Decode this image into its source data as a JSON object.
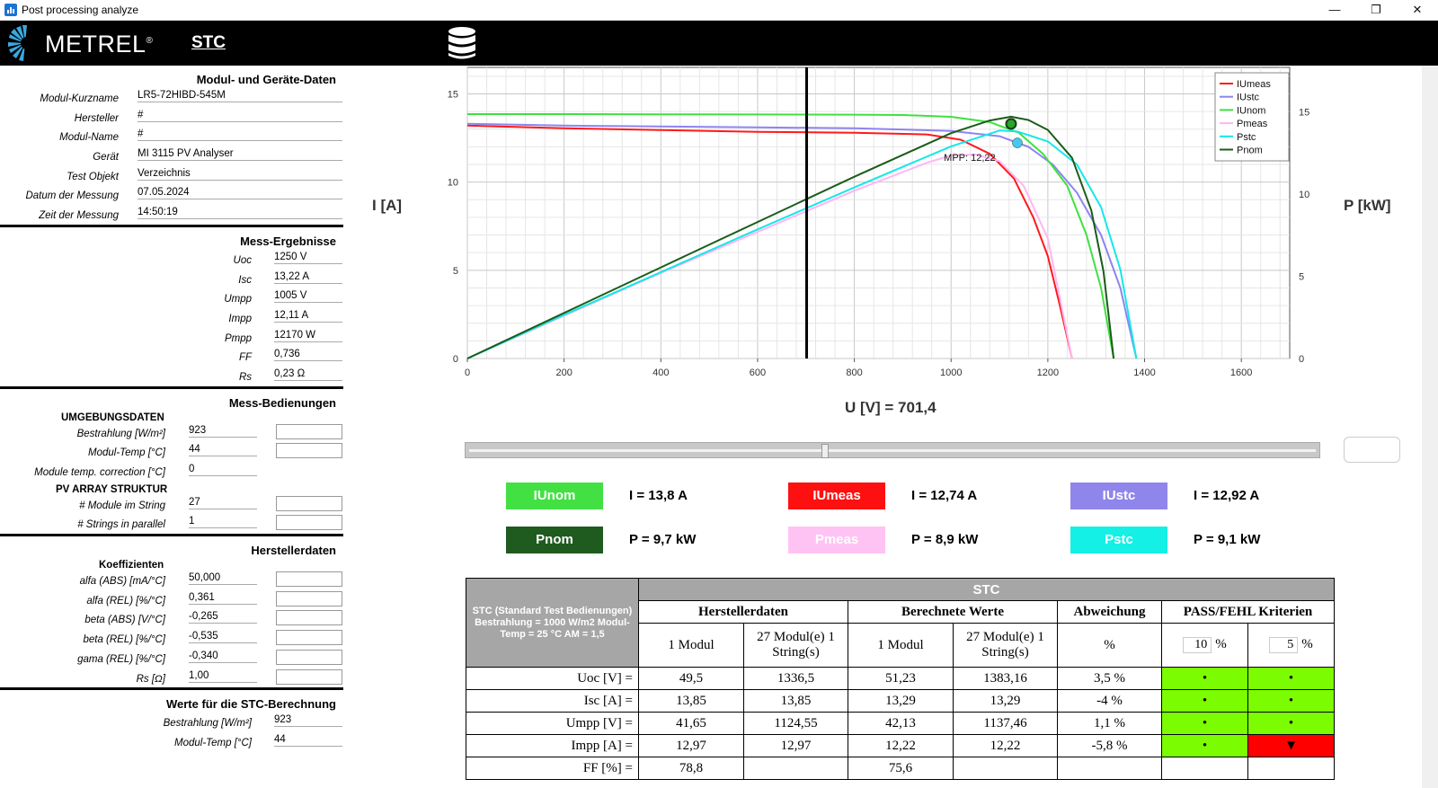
{
  "window": {
    "title": "Post processing analyze",
    "minimize": "—",
    "maximize": "❐",
    "close": "✕"
  },
  "header": {
    "logo_text": "METREL",
    "logo_reg": "®",
    "title": "STC"
  },
  "modul": {
    "title": "Modul- und Geräte-Daten",
    "rows": [
      {
        "label": "Modul-Kurzname",
        "value": "LR5-72HIBD-545M"
      },
      {
        "label": "Hersteller",
        "value": "#"
      },
      {
        "label": "Modul-Name",
        "value": "#"
      },
      {
        "label": "Gerät",
        "value": "MI 3115 PV Analyser"
      },
      {
        "label": "Test Objekt",
        "value": "Verzeichnis"
      },
      {
        "label": "Datum der Messung",
        "value": "07.05.2024"
      },
      {
        "label": "Zeit der Messung",
        "value": "14:50:19"
      }
    ]
  },
  "mess": {
    "title": "Mess-Ergebnisse",
    "rows": [
      {
        "label": "Uoc",
        "value": "1250 V"
      },
      {
        "label": "Isc",
        "value": "13,22 A"
      },
      {
        "label": "Umpp",
        "value": "1005 V"
      },
      {
        "label": "Impp",
        "value": "12,11 A"
      },
      {
        "label": "Pmpp",
        "value": "12170 W"
      },
      {
        "label": "FF",
        "value": "0,736"
      },
      {
        "label": "Rs",
        "value": "0,23 Ω"
      }
    ]
  },
  "bedingungen": {
    "title": "Mess-Bedienungen",
    "umgebung_title": "UMGEBUNGSDATEN",
    "umgebung": [
      {
        "label": "Bestrahlung  [W/m²]",
        "value": "923"
      },
      {
        "label": "Modul-Temp  [°C]",
        "value": "44"
      },
      {
        "label": "Module temp. correction  [°C]",
        "value": "0"
      }
    ],
    "array_title": "PV ARRAY STRUKTUR",
    "array": [
      {
        "label": "# Module im String",
        "value": "27"
      },
      {
        "label": "# Strings in parallel",
        "value": "1"
      }
    ]
  },
  "hersteller": {
    "title": "Herstellerdaten",
    "koeff_title": "Koeffizienten",
    "rows": [
      {
        "label": "alfa (ABS) [mA/°C]",
        "value": "50,000"
      },
      {
        "label": "alfa (REL) [%/°C]",
        "value": "0,361"
      },
      {
        "label": "beta (ABS) [V/°C]",
        "value": "-0,265"
      },
      {
        "label": "beta (REL) [%/°C]",
        "value": "-0,535"
      },
      {
        "label": "gama (REL) [%/°C]",
        "value": "-0,340"
      },
      {
        "label": "Rs [Ω]",
        "value": "1,00"
      }
    ]
  },
  "stc_calc": {
    "title": "Werte für die STC-Berechnung",
    "rows": [
      {
        "label": "Bestrahlung [W/m²]",
        "value": "923"
      },
      {
        "label": "Modul-Temp [°C]",
        "value": "44"
      }
    ]
  },
  "chart_data": {
    "type": "line",
    "ylabel": "I [A]",
    "y2label": "P [kW]",
    "xlabel_prefix": "U [V] = ",
    "cursor_u": "701,4",
    "xlim": [
      0,
      1700
    ],
    "ylim": [
      0,
      16.5
    ],
    "y2lim": [
      0,
      17.7
    ],
    "xticks": [
      0,
      200,
      400,
      600,
      800,
      1000,
      1200,
      1400,
      1600
    ],
    "yticks": [
      0,
      5,
      10,
      15
    ],
    "y2ticks": [
      0,
      5,
      10,
      15
    ],
    "grid": true,
    "legend_position": "top-right",
    "mpp_label": "MPP: 12,22",
    "series": [
      {
        "name": "IUmeas",
        "axis": "left",
        "color": "#ff1a1a",
        "points": [
          [
            0,
            13.2
          ],
          [
            200,
            13.05
          ],
          [
            400,
            12.95
          ],
          [
            600,
            12.85
          ],
          [
            800,
            12.8
          ],
          [
            950,
            12.7
          ],
          [
            1020,
            12.4
          ],
          [
            1080,
            11.6
          ],
          [
            1130,
            10.2
          ],
          [
            1170,
            8.0
          ],
          [
            1200,
            5.8
          ],
          [
            1225,
            3.0
          ],
          [
            1250,
            0
          ]
        ]
      },
      {
        "name": "IUstc",
        "axis": "left",
        "color": "#8c85f0",
        "points": [
          [
            0,
            13.3
          ],
          [
            200,
            13.2
          ],
          [
            400,
            13.15
          ],
          [
            600,
            13.1
          ],
          [
            800,
            13.05
          ],
          [
            1000,
            12.9
          ],
          [
            1100,
            12.6
          ],
          [
            1160,
            12.0
          ],
          [
            1210,
            11.0
          ],
          [
            1260,
            9.4
          ],
          [
            1310,
            7.0
          ],
          [
            1350,
            4.0
          ],
          [
            1383,
            0
          ]
        ]
      },
      {
        "name": "IUnom",
        "axis": "left",
        "color": "#40e040",
        "points": [
          [
            0,
            13.85
          ],
          [
            200,
            13.85
          ],
          [
            400,
            13.84
          ],
          [
            600,
            13.83
          ],
          [
            800,
            13.82
          ],
          [
            900,
            13.8
          ],
          [
            1000,
            13.7
          ],
          [
            1080,
            13.4
          ],
          [
            1140,
            12.8
          ],
          [
            1190,
            11.6
          ],
          [
            1240,
            9.8
          ],
          [
            1280,
            7.0
          ],
          [
            1310,
            4.0
          ],
          [
            1336,
            0
          ]
        ]
      },
      {
        "name": "Pmeas",
        "axis": "right",
        "color": "#ffb6f2",
        "points": [
          [
            0,
            0
          ],
          [
            200,
            2.6
          ],
          [
            400,
            5.2
          ],
          [
            600,
            7.7
          ],
          [
            800,
            10.2
          ],
          [
            950,
            11.9
          ],
          [
            1000,
            12.35
          ],
          [
            1050,
            12.4
          ],
          [
            1100,
            12.0
          ],
          [
            1150,
            10.5
          ],
          [
            1200,
            7.3
          ],
          [
            1250,
            0
          ]
        ]
      },
      {
        "name": "Pstc",
        "axis": "right",
        "color": "#14e8e8",
        "points": [
          [
            0,
            0
          ],
          [
            200,
            2.65
          ],
          [
            400,
            5.25
          ],
          [
            600,
            7.85
          ],
          [
            800,
            10.4
          ],
          [
            1000,
            12.9
          ],
          [
            1100,
            13.86
          ],
          [
            1137,
            13.8
          ],
          [
            1200,
            13.2
          ],
          [
            1260,
            11.8
          ],
          [
            1310,
            9.2
          ],
          [
            1350,
            5.4
          ],
          [
            1383,
            0
          ]
        ]
      },
      {
        "name": "Pnom",
        "axis": "right",
        "color": "#1a5c1a",
        "points": [
          [
            0,
            0
          ],
          [
            200,
            2.77
          ],
          [
            400,
            5.54
          ],
          [
            600,
            8.3
          ],
          [
            800,
            11.05
          ],
          [
            1000,
            13.7
          ],
          [
            1080,
            14.47
          ],
          [
            1124,
            14.7
          ],
          [
            1160,
            14.5
          ],
          [
            1200,
            13.9
          ],
          [
            1250,
            12.2
          ],
          [
            1290,
            9.0
          ],
          [
            1315,
            5.3
          ],
          [
            1336,
            0
          ]
        ]
      }
    ],
    "markers": [
      {
        "series": "IUnom",
        "x": 1124,
        "y": 13.3,
        "color": "#2aa42a",
        "axis": "left"
      },
      {
        "series": "IUstc",
        "x": 1137,
        "y": 12.22,
        "color": "#45c8f0",
        "axis": "left"
      }
    ]
  },
  "readouts": [
    {
      "name": "IUnom",
      "color": "#43e043",
      "text_color": "#ffffff",
      "value": "I =  13,8 A"
    },
    {
      "name": "IUmeas",
      "color": "#ff1010",
      "text_color": "#ffffff",
      "value": "I =  12,74 A"
    },
    {
      "name": "IUstc",
      "color": "#8f85ea",
      "text_color": "#ffffff",
      "value": "I =  12,92 A"
    },
    {
      "name": "Pnom",
      "color": "#1f5a1f",
      "text_color": "#ffffff",
      "value": "P =  9,7 kW"
    },
    {
      "name": "Pmeas",
      "color": "#ffc3f3",
      "text_color": "#ffffff",
      "value": "P =  8,9 kW"
    },
    {
      "name": "Pstc",
      "color": "#14f0e6",
      "text_color": "#ffffff",
      "value": "P =  9,1 kW"
    }
  ],
  "slider": {
    "position": 0.42
  },
  "table": {
    "corner": "STC (Standard Test Bedienungen) Bestrahlung = 1000 W/m2 Modul-Temp = 25 °C AM = 1,5",
    "stc": "STC",
    "groups": [
      "Herstellerdaten",
      "Berechnete Werte",
      "Abweichung",
      "PASS/FEHL Kriterien"
    ],
    "subheads": [
      "1 Modul",
      "27 Modul(e) 1 String(s)",
      "1 Modul",
      "27 Modul(e) 1 String(s)",
      "%"
    ],
    "crit1": "10",
    "crit2": "5",
    "pct": "%",
    "rows": [
      {
        "label": "Uoc [V] =",
        "c1": "49,5",
        "c2": "1336,5",
        "c3": "51,23",
        "c4": "1383,16",
        "dev": "3,5  %",
        "p1": "•",
        "p2": "•",
        "s1": "pass",
        "s2": "pass"
      },
      {
        "label": "Isc [A] =",
        "c1": "13,85",
        "c2": "13,85",
        "c3": "13,29",
        "c4": "13,29",
        "dev": "-4  %",
        "p1": "•",
        "p2": "•",
        "s1": "pass",
        "s2": "pass"
      },
      {
        "label": "Umpp [V] =",
        "c1": "41,65",
        "c2": "1124,55",
        "c3": "42,13",
        "c4": "1137,46",
        "dev": "1,1  %",
        "p1": "•",
        "p2": "•",
        "s1": "pass",
        "s2": "pass"
      },
      {
        "label": "Impp [A] =",
        "c1": "12,97",
        "c2": "12,97",
        "c3": "12,22",
        "c4": "12,22",
        "dev": "-5,8  %",
        "p1": "•",
        "p2": "▼",
        "s1": "pass",
        "s2": "fail"
      },
      {
        "label": "FF [%] =",
        "c1": "78,8",
        "c2": "",
        "c3": "75,6",
        "c4": "",
        "dev": "",
        "p1": "",
        "p2": "",
        "s1": "",
        "s2": ""
      }
    ]
  }
}
